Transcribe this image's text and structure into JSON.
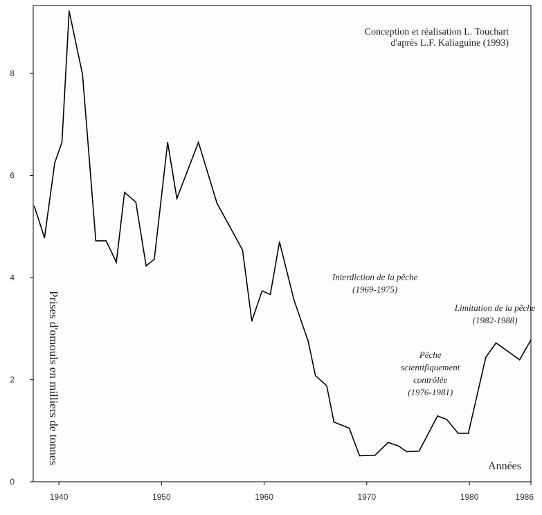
{
  "chart_data": {
    "type": "line",
    "title": "",
    "ylabel": "Prises d'omouls en milliers de tonnes",
    "xlabel": "Années",
    "credit": [
      "Conception et réalisation L. Touchart",
      "d'après L.F. Kaliaguine (1993)"
    ],
    "xlim": [
      1937.5,
      1986
    ],
    "ylim": [
      0,
      9.33
    ],
    "xticks": [
      1940,
      1950,
      1960,
      1970,
      1980,
      1986
    ],
    "yticks": [
      0,
      2,
      4,
      6,
      8
    ],
    "grid": false,
    "series": [
      {
        "points": [
          [
            1937.6,
            5.4
          ],
          [
            1938.6,
            4.78
          ],
          [
            1939.6,
            6.25
          ],
          [
            1940.3,
            6.65
          ],
          [
            1941.0,
            9.22
          ],
          [
            1942.3,
            7.98
          ],
          [
            1943.6,
            4.72
          ],
          [
            1944.6,
            4.72
          ],
          [
            1945.6,
            4.3
          ],
          [
            1946.4,
            5.67
          ],
          [
            1947.5,
            5.48
          ],
          [
            1948.5,
            4.23
          ],
          [
            1949.3,
            4.36
          ],
          [
            1950.6,
            6.65
          ],
          [
            1951.5,
            5.55
          ],
          [
            1953.6,
            6.65
          ],
          [
            1955.4,
            5.46
          ],
          [
            1957.9,
            4.54
          ],
          [
            1958.8,
            3.15
          ],
          [
            1959.8,
            3.74
          ],
          [
            1960.6,
            3.67
          ],
          [
            1961.5,
            4.7
          ],
          [
            1962.9,
            3.57
          ],
          [
            1964.3,
            2.75
          ],
          [
            1965.0,
            2.08
          ],
          [
            1966.1,
            1.88
          ],
          [
            1966.8,
            1.17
          ],
          [
            1968.3,
            1.05
          ],
          [
            1969.3,
            0.51
          ],
          [
            1970.8,
            0.52
          ],
          [
            1972.1,
            0.77
          ],
          [
            1973.1,
            0.7
          ],
          [
            1973.9,
            0.59
          ],
          [
            1975.1,
            0.6
          ],
          [
            1976.9,
            1.29
          ],
          [
            1977.8,
            1.22
          ],
          [
            1978.9,
            0.95
          ],
          [
            1979.9,
            0.95
          ],
          [
            1981.6,
            2.44
          ],
          [
            1982.6,
            2.72
          ],
          [
            1984.9,
            2.39
          ],
          [
            1986.0,
            2.78
          ]
        ]
      }
    ],
    "annotations": [
      {
        "lines": [
          "Interdiction de la pêche",
          "(1969-1975)"
        ],
        "x": 1970.8,
        "y": 3.95
      },
      {
        "lines": [
          "Limitation de la pêche",
          "(1982-1988)"
        ],
        "x": 1982.5,
        "y": 3.35
      },
      {
        "lines": [
          "Pêche",
          "scientifiquement",
          "contrôlée",
          "(1976-1981)"
        ],
        "x": 1976.2,
        "y": 2.43
      }
    ]
  }
}
